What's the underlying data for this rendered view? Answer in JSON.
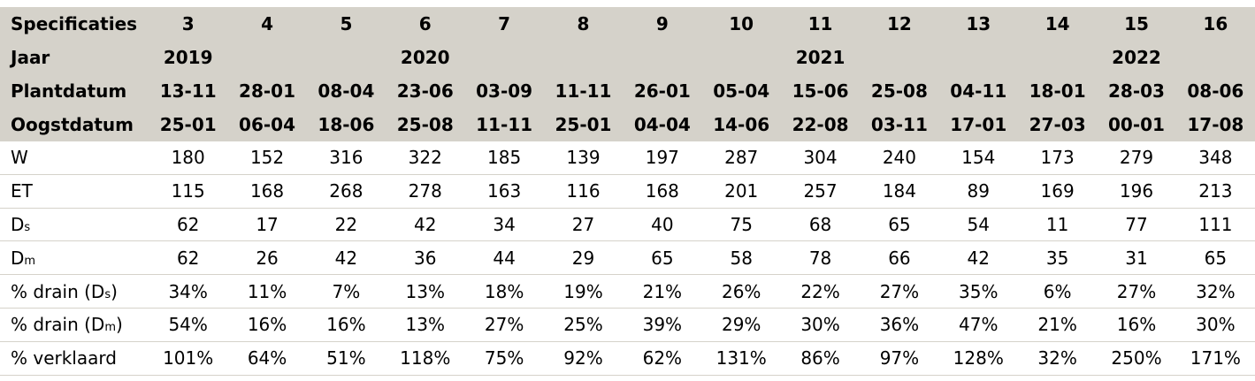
{
  "header": {
    "spec_label": "Specificaties",
    "spec_numbers": [
      "3",
      "4",
      "5",
      "6",
      "7",
      "8",
      "9",
      "10",
      "11",
      "12",
      "13",
      "14",
      "15",
      "16"
    ],
    "year_label": "Jaar",
    "years": [
      "2019",
      "",
      "",
      "2020",
      "",
      "",
      "",
      "",
      "2021",
      "",
      "",
      "",
      "2022",
      ""
    ],
    "plant_label": "Plantdatum",
    "plant_dates": [
      "13-11",
      "28-01",
      "08-04",
      "23-06",
      "03-09",
      "11-11",
      "26-01",
      "05-04",
      "15-06",
      "25-08",
      "04-11",
      "18-01",
      "28-03",
      "08-06"
    ],
    "harvest_label": "Oogstdatum",
    "harvest_dates": [
      "25-01",
      "06-04",
      "18-06",
      "25-08",
      "11-11",
      "25-01",
      "04-04",
      "14-06",
      "22-08",
      "03-11",
      "17-01",
      "27-03",
      "00-01",
      "17-08"
    ]
  },
  "rows": [
    {
      "label": "W",
      "sub": "",
      "suffix": "",
      "values": [
        "180",
        "152",
        "316",
        "322",
        "185",
        "139",
        "197",
        "287",
        "304",
        "240",
        "154",
        "173",
        "279",
        "348"
      ]
    },
    {
      "label": "ET",
      "sub": "",
      "suffix": "",
      "values": [
        "115",
        "168",
        "268",
        "278",
        "163",
        "116",
        "168",
        "201",
        "257",
        "184",
        "89",
        "169",
        "196",
        "213"
      ]
    },
    {
      "label": "D",
      "sub": "s",
      "suffix": "",
      "values": [
        "62",
        "17",
        "22",
        "42",
        "34",
        "27",
        "40",
        "75",
        "68",
        "65",
        "54",
        "11",
        "77",
        "111"
      ]
    },
    {
      "label": "D",
      "sub": "m",
      "suffix": "",
      "values": [
        "62",
        "26",
        "42",
        "36",
        "44",
        "29",
        "65",
        "58",
        "78",
        "66",
        "42",
        "35",
        "31",
        "65"
      ]
    },
    {
      "label": "% drain (D",
      "sub": "s",
      "suffix": ")",
      "values": [
        "34%",
        "11%",
        "7%",
        "13%",
        "18%",
        "19%",
        "21%",
        "26%",
        "22%",
        "27%",
        "35%",
        "6%",
        "27%",
        "32%"
      ]
    },
    {
      "label": "% drain (D",
      "sub": "m",
      "suffix": ")",
      "values": [
        "54%",
        "16%",
        "16%",
        "13%",
        "27%",
        "25%",
        "39%",
        "29%",
        "30%",
        "36%",
        "47%",
        "21%",
        "16%",
        "30%"
      ]
    },
    {
      "label": "% verklaard",
      "sub": "",
      "suffix": "",
      "values": [
        "101%",
        "64%",
        "51%",
        "118%",
        "75%",
        "92%",
        "62%",
        "131%",
        "86%",
        "97%",
        "128%",
        "32%",
        "250%",
        "171%"
      ]
    }
  ]
}
